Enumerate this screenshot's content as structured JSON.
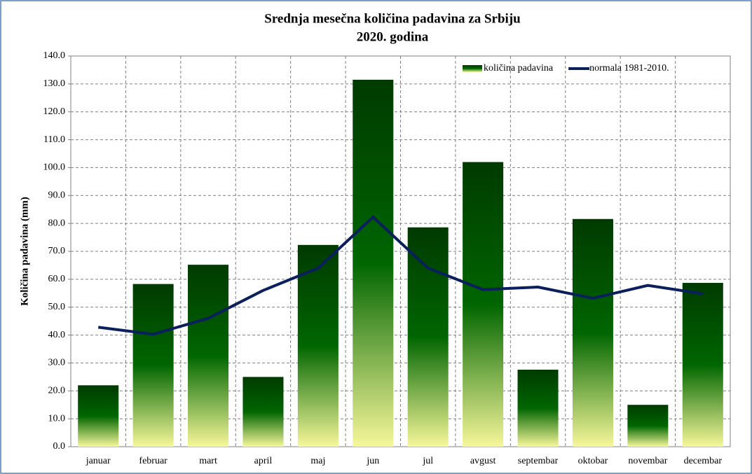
{
  "chart_data": {
    "type": "bar",
    "title": "Srednja mesečna količina padavina za Srbiju",
    "subtitle": "2020. godina",
    "y_label": "Količina padavina (mm)",
    "categories": [
      "januar",
      "februar",
      "mart",
      "april",
      "maj",
      "jun",
      "jul",
      "avgust",
      "septembar",
      "oktobar",
      "novembar",
      "decembar"
    ],
    "series": [
      {
        "name": "količina padavina",
        "type": "bar",
        "color": [
          "#003a00",
          "#006600",
          "#f7f79a"
        ],
        "values": [
          22,
          58.3,
          65.2,
          25,
          72.3,
          131.5,
          78.6,
          102,
          27.6,
          81.6,
          15,
          58.7
        ]
      },
      {
        "name": "normala 1981-2010.",
        "type": "line",
        "color": "#0a1f5c",
        "values": [
          42.8,
          40.3,
          46,
          56,
          64,
          82.3,
          64,
          56.3,
          57.2,
          53.2,
          57.8,
          54.8
        ]
      }
    ],
    "ylim": [
      0,
      140
    ],
    "yticks": [
      {
        "value": 0,
        "label": "0.0"
      },
      {
        "value": 10,
        "label": "10.0"
      },
      {
        "value": 20,
        "label": "20.0"
      },
      {
        "value": 30,
        "label": "30.0"
      },
      {
        "value": 40,
        "label": "40.0"
      },
      {
        "value": 50,
        "label": "50.0"
      },
      {
        "value": 60,
        "label": "60.0"
      },
      {
        "value": 70,
        "label": "70.0"
      },
      {
        "value": 80,
        "label": "80.0"
      },
      {
        "value": 90,
        "label": "90.0"
      },
      {
        "value": 100,
        "label": "100.0"
      },
      {
        "value": 110,
        "label": "110.0"
      },
      {
        "value": 120,
        "label": "120.0"
      },
      {
        "value": 130,
        "label": "130.0"
      },
      {
        "value": 140,
        "label": "140.0"
      }
    ],
    "grid": true,
    "legend": "top-right"
  }
}
